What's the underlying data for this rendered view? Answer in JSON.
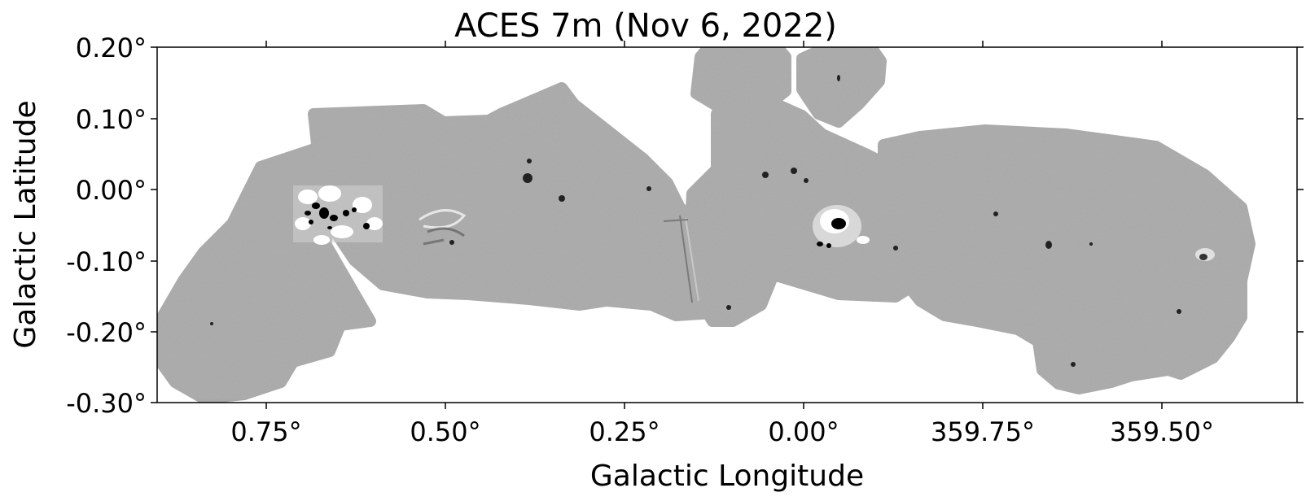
{
  "title": "ACES 7m (Nov 6, 2022)",
  "xaxis": {
    "label": "Galactic Longitude",
    "ticks": [
      "0.75°",
      "0.50°",
      "0.25°",
      "0.00°",
      "359.75°",
      "359.50°"
    ]
  },
  "yaxis": {
    "label": "Galactic Latitude",
    "ticks": [
      "0.20°",
      "0.10°",
      "0.00°",
      "-0.10°",
      "-0.20°",
      "-0.30°"
    ]
  },
  "colors": {
    "map_gray": "#a9a9a9",
    "background": "#ffffff",
    "bright": "#ffffff",
    "dark": "#000000"
  }
}
